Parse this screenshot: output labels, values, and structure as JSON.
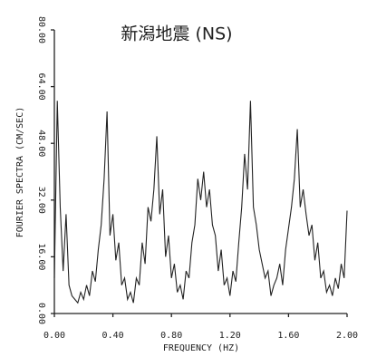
{
  "chart_data": {
    "type": "line",
    "title": "新潟地震 (NS)",
    "x_label": "FREQUENCY (HZ)",
    "y_label": "FOURIER SPECTRA (CM/SEC)",
    "x": [
      0.0,
      0.02,
      0.04,
      0.06,
      0.08,
      0.1,
      0.12,
      0.14,
      0.16,
      0.18,
      0.2,
      0.22,
      0.24,
      0.26,
      0.28,
      0.3,
      0.32,
      0.34,
      0.36,
      0.38,
      0.4,
      0.42,
      0.44,
      0.46,
      0.48,
      0.5,
      0.52,
      0.54,
      0.56,
      0.58,
      0.6,
      0.62,
      0.64,
      0.66,
      0.68,
      0.7,
      0.72,
      0.74,
      0.76,
      0.78,
      0.8,
      0.82,
      0.84,
      0.86,
      0.88,
      0.9,
      0.92,
      0.94,
      0.96,
      0.98,
      1.0,
      1.02,
      1.04,
      1.06,
      1.08,
      1.1,
      1.12,
      1.14,
      1.16,
      1.18,
      1.2,
      1.22,
      1.24,
      1.26,
      1.28,
      1.3,
      1.32,
      1.34,
      1.36,
      1.38,
      1.4,
      1.42,
      1.44,
      1.46,
      1.48,
      1.5,
      1.52,
      1.54,
      1.56,
      1.58,
      1.6,
      1.62,
      1.64,
      1.66,
      1.68,
      1.7,
      1.72,
      1.74,
      1.76,
      1.78,
      1.8,
      1.82,
      1.84,
      1.86,
      1.88,
      1.9,
      1.92,
      1.94,
      1.96,
      1.98,
      2.0
    ],
    "series": [
      {
        "color": "#222222",
        "values": [
          10,
          60,
          30,
          12,
          28,
          8,
          5,
          4,
          3,
          6,
          4,
          8,
          5,
          12,
          9,
          18,
          25,
          38,
          57,
          22,
          28,
          15,
          20,
          8,
          10,
          4,
          6,
          3,
          10,
          8,
          20,
          14,
          30,
          26,
          35,
          50,
          28,
          35,
          16,
          22,
          10,
          14,
          6,
          8,
          4,
          12,
          10,
          20,
          25,
          38,
          32,
          40,
          30,
          35,
          25,
          22,
          12,
          18,
          8,
          10,
          5,
          12,
          9,
          20,
          30,
          45,
          35,
          60,
          30,
          25,
          18,
          14,
          10,
          12,
          5,
          8,
          10,
          14,
          8,
          18,
          24,
          30,
          38,
          52,
          30,
          35,
          28,
          22,
          25,
          15,
          20,
          10,
          12,
          6,
          8,
          5,
          10,
          7,
          14,
          10,
          29
        ]
      }
    ],
    "xlim": [
      0,
      2
    ],
    "xticks": [
      {
        "value": 0,
        "label": "0.00"
      },
      {
        "value": 0.4,
        "label": "0.40"
      },
      {
        "value": 0.8,
        "label": "0.80"
      },
      {
        "value": 1.2,
        "label": "1.20"
      },
      {
        "value": 1.6,
        "label": "1.60"
      },
      {
        "value": 2,
        "label": "2.00"
      }
    ],
    "ylim": [
      0,
      80
    ],
    "yticks": [
      {
        "value": 0,
        "label": "0.00"
      },
      {
        "value": 16,
        "label": "16.00"
      },
      {
        "value": 32,
        "label": "32.00"
      },
      {
        "value": 48,
        "label": "48.00"
      },
      {
        "value": 64,
        "label": "64.00"
      },
      {
        "value": 80,
        "label": "80.00"
      }
    ]
  }
}
